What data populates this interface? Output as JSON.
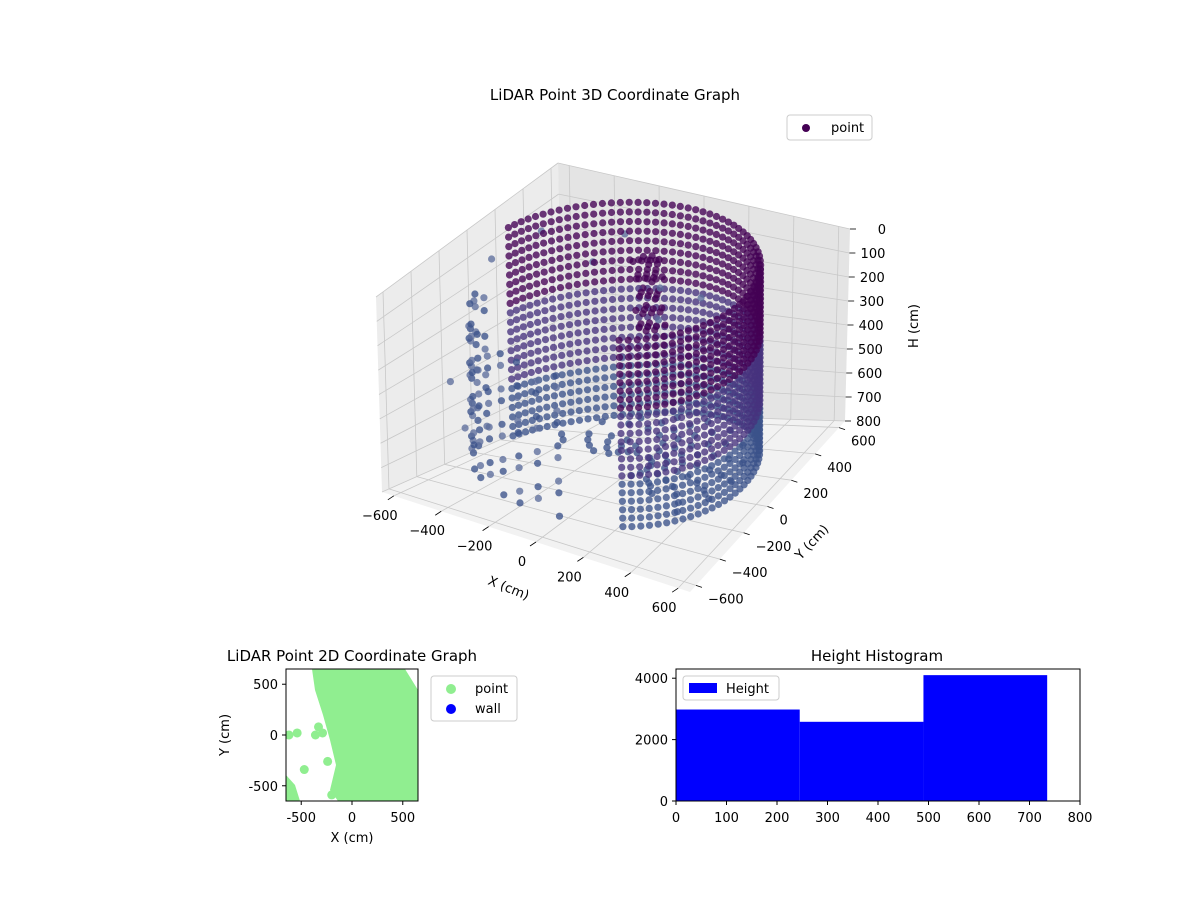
{
  "figure": {
    "background": "#ffffff"
  },
  "chart_data": [
    {
      "type": "scatter",
      "dimensions": 3,
      "title": "LiDAR Point 3D Coordinate Graph",
      "xlabel": "X (cm)",
      "ylabel": "Y (cm)",
      "zlabel": "H (cm)",
      "xlim": [
        -650,
        650
      ],
      "ylim": [
        -650,
        650
      ],
      "zlim": [
        0,
        800
      ],
      "z_axis_inverted": true,
      "x_ticks": [
        "−600",
        "−400",
        "−200",
        "0",
        "200",
        "400",
        "600"
      ],
      "y_ticks": [
        "−600",
        "−400",
        "−200",
        "0",
        "200",
        "400",
        "600"
      ],
      "z_ticks": [
        "0",
        "100",
        "200",
        "300",
        "400",
        "500",
        "600",
        "700",
        "800"
      ],
      "legend": {
        "position": "top-right",
        "entries": [
          {
            "label": "point",
            "color": "#440154"
          }
        ]
      },
      "colormap": [
        "#440154",
        "#46327e",
        "#3b528b",
        "#5e6e9c",
        "#8a93b8"
      ],
      "wall": {
        "center": [
          -20,
          40
        ],
        "radius": 540,
        "arc_deg": [
          -60,
          170
        ],
        "z_top": 20,
        "z_bottom": 760
      },
      "outliers": [
        {
          "x": -560,
          "y": 380,
          "z": 120
        },
        {
          "x": -620,
          "y": 120,
          "z": 140
        },
        {
          "x": -640,
          "y": 20,
          "z": 260
        },
        {
          "x": -420,
          "y": 520,
          "z": 250
        },
        {
          "x": -640,
          "y": -160,
          "z": 500
        },
        {
          "x": -300,
          "y": 560,
          "z": 150
        },
        {
          "x": -120,
          "y": 520,
          "z": 300
        },
        {
          "x": -80,
          "y": 440,
          "z": 380
        },
        {
          "x": -220,
          "y": 400,
          "z": 520
        },
        {
          "x": -520,
          "y": -260,
          "z": 620
        },
        {
          "x": 40,
          "y": 560,
          "z": 330
        }
      ]
    },
    {
      "type": "scatter",
      "title": "LiDAR Point 2D Coordinate Graph",
      "xlabel": "X (cm)",
      "ylabel": "Y (cm)",
      "xlim": [
        -650,
        650
      ],
      "ylim": [
        -650,
        650
      ],
      "x_ticks": [
        -500,
        0,
        500
      ],
      "y_ticks": [
        -500,
        0,
        500
      ],
      "legend": {
        "position": "outside-right",
        "entries": [
          {
            "label": "point",
            "color": "#90ee90"
          },
          {
            "label": "wall",
            "color": "#0000ff"
          }
        ]
      },
      "points": [
        [
          -620,
          0
        ],
        [
          -540,
          20
        ],
        [
          -360,
          0
        ],
        [
          -470,
          -340
        ],
        [
          -240,
          -260
        ],
        [
          -200,
          -590
        ],
        [
          -290,
          20
        ],
        [
          -330,
          80
        ]
      ]
    },
    {
      "type": "bar",
      "subtype": "histogram",
      "title": "Height Histogram",
      "xlim": [
        0,
        800
      ],
      "ylim": [
        0,
        4300
      ],
      "x_ticks": [
        0,
        100,
        200,
        300,
        400,
        500,
        600,
        700,
        800
      ],
      "y_ticks": [
        0,
        2000,
        4000
      ],
      "bins": [
        {
          "start": 0,
          "end": 245,
          "count": 2980
        },
        {
          "start": 245,
          "end": 490,
          "count": 2580
        },
        {
          "start": 490,
          "end": 735,
          "count": 4100
        }
      ],
      "legend": {
        "position": "top-left",
        "entries": [
          {
            "label": "Height",
            "color": "#0000ff"
          }
        ]
      }
    }
  ]
}
